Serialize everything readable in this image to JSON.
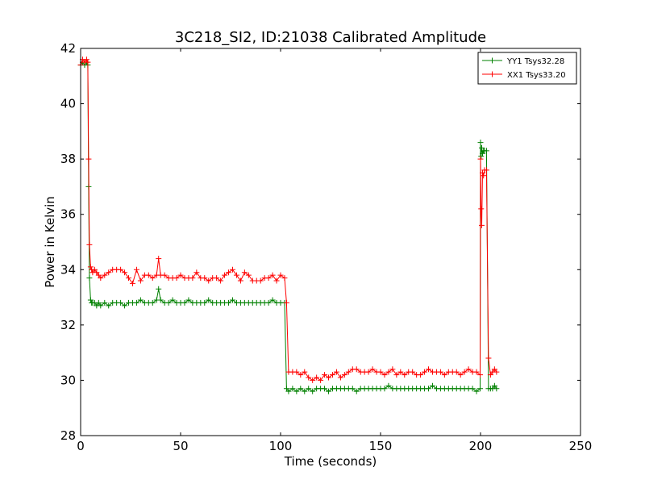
{
  "chart_data": {
    "type": "line",
    "title": "3C218_SI2, ID:21038 Calibrated Amplitude",
    "xlabel": "Time (seconds)",
    "ylabel": "Power in Kelvin",
    "xlim": [
      0,
      250
    ],
    "ylim": [
      28,
      42
    ],
    "xticks": [
      0,
      50,
      100,
      150,
      200,
      250
    ],
    "yticks": [
      28,
      30,
      32,
      34,
      36,
      38,
      40,
      42
    ],
    "xtick_labels": [
      "0",
      "50",
      "100",
      "150",
      "200",
      "250"
    ],
    "ytick_labels": [
      "28",
      "30",
      "32",
      "34",
      "36",
      "38",
      "40",
      "42"
    ],
    "grid": false,
    "legend_position": "top-right",
    "marker": "plus",
    "series": [
      {
        "name": "YY1 Tsys32.28",
        "color": "#008000",
        "x": [
          0,
          1,
          2,
          3,
          3.6,
          4,
          4.4,
          5,
          5.5,
          6,
          7,
          8,
          9,
          10,
          12,
          14,
          16,
          18,
          20,
          22,
          24,
          26,
          28,
          30,
          32,
          34,
          36,
          38,
          39,
          40,
          42,
          44,
          46,
          48,
          50,
          52,
          54,
          56,
          58,
          60,
          62,
          64,
          66,
          68,
          70,
          72,
          74,
          76,
          78,
          80,
          82,
          84,
          86,
          88,
          90,
          92,
          94,
          96,
          98,
          100,
          102,
          103,
          104,
          106,
          108,
          110,
          112,
          114,
          116,
          118,
          120,
          122,
          124,
          126,
          128,
          130,
          132,
          134,
          136,
          138,
          140,
          142,
          144,
          146,
          148,
          150,
          152,
          154,
          156,
          158,
          160,
          162,
          164,
          166,
          168,
          170,
          172,
          174,
          176,
          178,
          180,
          182,
          184,
          186,
          188,
          190,
          192,
          194,
          196,
          198,
          199.8,
          200,
          200.3,
          200.6,
          201,
          201.5,
          202,
          203,
          204,
          205,
          206,
          207,
          208
        ],
        "y": [
          41.4,
          41.5,
          41.4,
          41.5,
          41.4,
          37.0,
          33.7,
          32.9,
          32.8,
          32.8,
          32.8,
          32.7,
          32.8,
          32.7,
          32.8,
          32.7,
          32.8,
          32.8,
          32.8,
          32.7,
          32.8,
          32.8,
          32.8,
          32.9,
          32.8,
          32.8,
          32.8,
          32.9,
          33.3,
          32.9,
          32.8,
          32.8,
          32.9,
          32.8,
          32.8,
          32.8,
          32.9,
          32.8,
          32.8,
          32.8,
          32.8,
          32.9,
          32.8,
          32.8,
          32.8,
          32.8,
          32.8,
          32.9,
          32.8,
          32.8,
          32.8,
          32.8,
          32.8,
          32.8,
          32.8,
          32.8,
          32.8,
          32.9,
          32.8,
          32.8,
          32.8,
          29.7,
          29.6,
          29.7,
          29.6,
          29.7,
          29.6,
          29.7,
          29.6,
          29.7,
          29.7,
          29.7,
          29.6,
          29.7,
          29.7,
          29.7,
          29.7,
          29.7,
          29.7,
          29.6,
          29.7,
          29.7,
          29.7,
          29.7,
          29.7,
          29.7,
          29.7,
          29.8,
          29.7,
          29.7,
          29.7,
          29.7,
          29.7,
          29.7,
          29.7,
          29.7,
          29.7,
          29.7,
          29.8,
          29.7,
          29.7,
          29.7,
          29.7,
          29.7,
          29.7,
          29.7,
          29.7,
          29.7,
          29.7,
          29.6,
          29.7,
          38.6,
          38.1,
          38.4,
          38.2,
          38.3,
          38.3,
          38.3,
          29.7,
          29.7,
          29.7,
          29.8,
          29.7
        ]
      },
      {
        "name": "XX1 Tsys33.20",
        "color": "#ff0000",
        "x": [
          0,
          1,
          2,
          3,
          3.6,
          4,
          4.4,
          5,
          5.5,
          6,
          7,
          8,
          9,
          10,
          12,
          14,
          16,
          18,
          20,
          22,
          24,
          26,
          28,
          30,
          32,
          34,
          36,
          38,
          39,
          40,
          42,
          44,
          46,
          48,
          50,
          52,
          54,
          56,
          58,
          60,
          62,
          64,
          66,
          68,
          70,
          72,
          74,
          76,
          78,
          80,
          82,
          84,
          86,
          88,
          90,
          92,
          94,
          96,
          98,
          100,
          102,
          103,
          104,
          106,
          108,
          110,
          112,
          114,
          116,
          118,
          120,
          122,
          124,
          126,
          128,
          130,
          132,
          134,
          136,
          138,
          140,
          142,
          144,
          146,
          148,
          150,
          152,
          154,
          156,
          158,
          160,
          162,
          164,
          166,
          168,
          170,
          172,
          174,
          176,
          178,
          180,
          182,
          184,
          186,
          188,
          190,
          192,
          194,
          196,
          198,
          199.8,
          200,
          200.3,
          200.6,
          201,
          201.5,
          202,
          203,
          204,
          205,
          206,
          207,
          208
        ],
        "y": [
          41.4,
          41.6,
          41.5,
          41.6,
          41.5,
          38.0,
          34.9,
          34.1,
          34.0,
          33.9,
          34.0,
          33.9,
          33.8,
          33.7,
          33.8,
          33.9,
          34.0,
          34.0,
          34.0,
          33.9,
          33.7,
          33.5,
          34.0,
          33.6,
          33.8,
          33.8,
          33.7,
          33.8,
          34.4,
          33.8,
          33.8,
          33.7,
          33.7,
          33.7,
          33.8,
          33.7,
          33.7,
          33.7,
          33.9,
          33.7,
          33.7,
          33.6,
          33.7,
          33.7,
          33.6,
          33.8,
          33.9,
          34.0,
          33.8,
          33.6,
          33.9,
          33.8,
          33.6,
          33.6,
          33.6,
          33.7,
          33.7,
          33.8,
          33.6,
          33.8,
          33.7,
          32.8,
          30.3,
          30.3,
          30.3,
          30.2,
          30.3,
          30.1,
          30.0,
          30.1,
          30.0,
          30.2,
          30.1,
          30.2,
          30.3,
          30.1,
          30.2,
          30.3,
          30.4,
          30.4,
          30.3,
          30.3,
          30.3,
          30.4,
          30.3,
          30.3,
          30.2,
          30.3,
          30.4,
          30.2,
          30.3,
          30.2,
          30.3,
          30.3,
          30.2,
          30.2,
          30.3,
          30.4,
          30.3,
          30.3,
          30.3,
          30.2,
          30.3,
          30.3,
          30.3,
          30.2,
          30.3,
          30.4,
          30.3,
          30.3,
          30.2,
          38.0,
          36.2,
          35.6,
          37.5,
          37.4,
          37.6,
          37.6,
          30.8,
          30.2,
          30.3,
          30.4,
          30.3
        ]
      }
    ]
  }
}
